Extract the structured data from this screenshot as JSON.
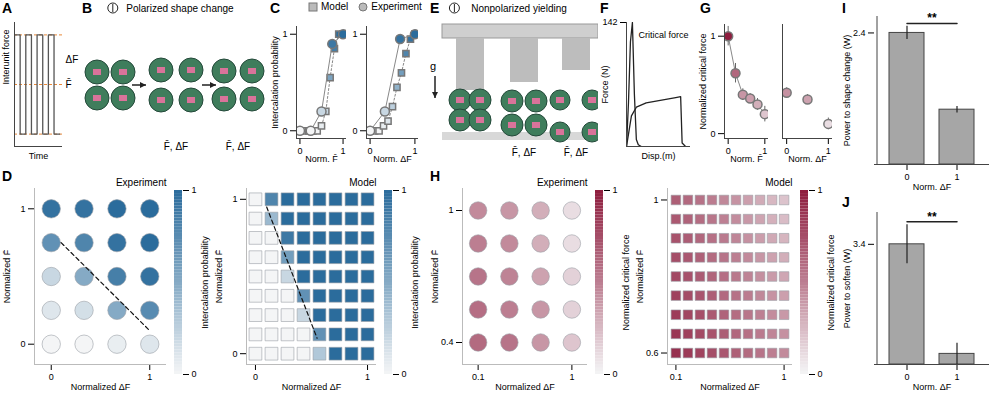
{
  "chart_data": [
    {
      "panel": "A",
      "type": "line",
      "xlabel": "Time",
      "ylabel": "Interunit force",
      "xlim": [
        0,
        8.5
      ],
      "ylim": [
        0,
        1
      ],
      "tick_labels": false,
      "series": [
        {
          "color": "#555555",
          "x": [
            0,
            0,
            1,
            1,
            2,
            2,
            3,
            3,
            4,
            4,
            5,
            5,
            6,
            6,
            7,
            7,
            8
          ],
          "values": [
            0.5,
            0.9,
            0.9,
            0.1,
            0.1,
            0.9,
            0.9,
            0.1,
            0.1,
            0.9,
            0.9,
            0.1,
            0.1,
            0.9,
            0.9,
            0.1,
            0.1
          ]
        }
      ],
      "reference_values": [
        0.1,
        0.5,
        0.9
      ],
      "annotations": [
        {
          "text": "ΔF",
          "y": 0.7
        },
        {
          "text": "F̄",
          "y": 0.5
        }
      ]
    },
    {
      "panel": "B",
      "type": "image",
      "title": "Polarized shape change",
      "annotations": [
        "F̄, ΔF",
        "F̄, ΔF"
      ]
    },
    {
      "panel": "C",
      "type": "scatter",
      "legend": "top",
      "xlabel": "Norm. F̄",
      "ylabel": "Intercalation probability",
      "xlim": [
        -0.08,
        1.08
      ],
      "ylim": [
        -0.08,
        1.08
      ],
      "xticks": [
        0,
        1
      ],
      "yticks": [
        0,
        1
      ],
      "color": "#2b6c9c",
      "series": [
        {
          "name": "Model",
          "marker": "square",
          "line_style": "dotted",
          "x": [
            0,
            0.1,
            0.2,
            0.3,
            0.4,
            0.5,
            0.6,
            0.7,
            0.8,
            0.9,
            1
          ],
          "values": [
            0,
            0,
            0,
            0,
            0,
            0.05,
            0.2,
            0.55,
            0.85,
            1,
            1
          ]
        },
        {
          "name": "Experiment",
          "marker": "circle",
          "line_style": "solid",
          "x": [
            0,
            0.25,
            0.5,
            0.75,
            1
          ],
          "values": [
            0,
            0,
            0.2,
            0.9,
            1
          ]
        }
      ]
    },
    {
      "type": "scatter",
      "xlabel": "Norm. ΔF",
      "xlim": [
        -0.08,
        1.08
      ],
      "ylim": [
        -0.08,
        1.08
      ],
      "xticks": [
        0,
        1
      ],
      "yticks": [
        0,
        1
      ],
      "color": "#2b6c9c",
      "series": [
        {
          "marker": "square",
          "line_style": "dotted",
          "x": [
            0,
            0.1,
            0.2,
            0.3,
            0.4,
            0.5,
            0.6,
            0.7,
            0.8,
            0.9,
            1
          ],
          "values": [
            0,
            0,
            0,
            0.05,
            0.1,
            0.25,
            0.45,
            0.6,
            0.8,
            0.95,
            1
          ]
        },
        {
          "marker": "circle",
          "line_style": "solid",
          "x": [
            0,
            0.33,
            0.67,
            1
          ],
          "values": [
            0,
            0.2,
            0.95,
            1
          ]
        }
      ]
    },
    {
      "panel": "D",
      "type": "dotgrid",
      "title": "Experiment",
      "xlabel": "Normalized ΔF",
      "ylabel": "Normalized F̄",
      "marker": "circle",
      "color": "#2b6c9c",
      "xlim": [
        -0.17,
        1.17
      ],
      "ylim": [
        -0.15,
        1.15
      ],
      "xticks": [
        0,
        1
      ],
      "yticks": [
        0,
        1
      ],
      "x": [
        0,
        0.333,
        0.667,
        1
      ],
      "y": [
        0,
        0.25,
        0.5,
        0.75,
        1
      ],
      "values": [
        [
          0,
          0,
          0.05,
          0.1
        ],
        [
          0.1,
          0.15,
          0.5,
          0.75
        ],
        [
          0.2,
          0.5,
          0.85,
          0.95
        ],
        [
          0.7,
          0.8,
          0.95,
          1
        ],
        [
          0.95,
          0.95,
          1,
          1
        ]
      ],
      "boundary": [
        [
          0.1,
          0.75
        ],
        [
          1,
          0.1
        ]
      ],
      "colorbar": {
        "label": "Intercalation probability",
        "range": [
          0,
          1
        ],
        "ticks": [
          0,
          1
        ]
      }
    },
    {
      "type": "dotgrid",
      "title": "Model",
      "xlabel": "Normalized ΔF",
      "ylabel": "Normalized F̄",
      "marker": "square",
      "color": "#2b6c9c",
      "xlim": [
        -0.08,
        1.08
      ],
      "ylim": [
        -0.07,
        1.07
      ],
      "xticks": [
        0,
        1
      ],
      "yticks": [
        0,
        1
      ],
      "x": [
        0,
        0.143,
        0.286,
        0.429,
        0.571,
        0.714,
        0.857,
        1
      ],
      "y": [
        0,
        0.125,
        0.25,
        0.375,
        0.5,
        0.625,
        0.75,
        0.875,
        1
      ],
      "values": [
        [
          0,
          0,
          0,
          0,
          0.3,
          1,
          1,
          1
        ],
        [
          0,
          0,
          0,
          0,
          0.7,
          1,
          1,
          1
        ],
        [
          0,
          0,
          0,
          0.2,
          1,
          1,
          1,
          1
        ],
        [
          0,
          0,
          0,
          0.7,
          1,
          1,
          1,
          1
        ],
        [
          0,
          0,
          0.2,
          1,
          1,
          1,
          1,
          1
        ],
        [
          0,
          0,
          0.6,
          1,
          1,
          1,
          1,
          1
        ],
        [
          0,
          0,
          0.9,
          1,
          1,
          1,
          1,
          1
        ],
        [
          0,
          0.4,
          1,
          1,
          1,
          1,
          1,
          1
        ],
        [
          0,
          0.8,
          1,
          1,
          1,
          1,
          1,
          1
        ]
      ],
      "boundary": [
        [
          0.1,
          0.95
        ],
        [
          0.55,
          0.1
        ]
      ],
      "colorbar": {
        "label": "Intercalation probability",
        "range": [
          0,
          1
        ],
        "ticks": [
          0,
          1
        ]
      }
    },
    {
      "panel": "E",
      "type": "image",
      "title": "Nonpolarized yielding",
      "gravity_label": "g",
      "annotations": [
        "F̄, ΔF",
        "F̄, ΔF"
      ]
    },
    {
      "panel": "F",
      "type": "line",
      "xlabel": "Disp.(m)",
      "ylabel": "Force (N)",
      "xlim": [
        0,
        0.13
      ],
      "ylim": [
        0,
        142
      ],
      "yticks": [
        142
      ],
      "tick_labels": "y",
      "series": [
        {
          "color": "#222222",
          "x": [
            0,
            0.004,
            0.008,
            0.012,
            0.016,
            0.02,
            0.024,
            0.03
          ],
          "values": [
            0,
            50,
            120,
            142,
            60,
            8,
            2,
            0
          ]
        },
        {
          "color": "#222222",
          "x": [
            0,
            0.01,
            0.02,
            0.04,
            0.06,
            0.08,
            0.1,
            0.11,
            0.113,
            0.12
          ],
          "values": [
            0,
            35,
            45,
            50,
            52,
            54,
            56,
            57,
            4,
            0
          ]
        }
      ],
      "annotations": [
        {
          "text": "Critical force",
          "x": 0.075,
          "y": 128
        }
      ]
    },
    {
      "panel": "G",
      "type": "scatter",
      "xlabel": "Norm. F̄",
      "ylabel": "Normalized critical force",
      "xlim": [
        -0.1,
        1.1
      ],
      "ylim": [
        -0.05,
        1.12
      ],
      "xticks": [
        0,
        1
      ],
      "yticks": [
        0,
        1
      ],
      "color": "#8e1d3e",
      "series": [
        {
          "marker": "circle",
          "line_style": "solid",
          "x": [
            0,
            0.2,
            0.4,
            0.6,
            0.8,
            1
          ],
          "values": [
            1,
            0.62,
            0.4,
            0.36,
            0.3,
            0.2
          ],
          "errors": [
            0.1,
            0.1,
            0.06,
            0.05,
            0.06,
            0.08
          ]
        }
      ]
    },
    {
      "type": "scatter",
      "xlabel": "Norm. ΔF",
      "xlim": [
        -0.1,
        1.1
      ],
      "ylim": [
        -0.05,
        1.12
      ],
      "xticks": [
        0,
        1
      ],
      "tick_labels": "x",
      "color": "#8e1d3e",
      "series": [
        {
          "marker": "circle",
          "line_style": "none",
          "x": [
            0,
            0.5,
            1
          ],
          "values": [
            0.42,
            0.35,
            0.1
          ],
          "errors": [
            0.05,
            0.05,
            0.06
          ]
        }
      ]
    },
    {
      "panel": "H",
      "type": "dotgrid",
      "title": "Experiment",
      "xlabel": "Normalized ΔF",
      "ylabel": "Normalized F̄",
      "marker": "circle",
      "color": "#8e1d3e",
      "xlim": [
        -0.05,
        1.15
      ],
      "ylim": [
        0.3,
        1.1
      ],
      "xticks": [
        0.1,
        1
      ],
      "yticks": [
        0.4,
        1
      ],
      "x": [
        0.1,
        0.4,
        0.7,
        1
      ],
      "y": [
        0.4,
        0.55,
        0.7,
        0.85,
        1
      ],
      "values": [
        [
          0.6,
          0.55,
          0.4,
          0.2
        ],
        [
          0.58,
          0.5,
          0.4,
          0.15
        ],
        [
          0.55,
          0.48,
          0.35,
          0.15
        ],
        [
          0.5,
          0.45,
          0.3,
          0.1
        ],
        [
          0.45,
          0.4,
          0.3,
          0.1
        ]
      ],
      "colorbar": {
        "label": "Normalized critical force",
        "range": [
          0,
          1
        ],
        "ticks": [
          0,
          1
        ]
      }
    },
    {
      "type": "dotgrid",
      "title": "Model",
      "xlabel": "Normalized ΔF",
      "ylabel": "Normalized F̄",
      "marker": "square",
      "color": "#8e1d3e",
      "xlim": [
        0.03,
        1.07
      ],
      "ylim": [
        0.57,
        1.03
      ],
      "xticks": [
        0.1,
        1
      ],
      "yticks": [
        0.6,
        1
      ],
      "x": [
        0.1,
        0.2,
        0.3,
        0.4,
        0.5,
        0.6,
        0.7,
        0.8,
        0.9,
        1
      ],
      "y": [
        0.6,
        0.65,
        0.7,
        0.75,
        0.8,
        0.85,
        0.9,
        0.95,
        1
      ],
      "values": [
        [
          0.9,
          0.85,
          0.8,
          0.75,
          0.7,
          0.65,
          0.6,
          0.55,
          0.5,
          0.45
        ],
        [
          0.87,
          0.82,
          0.77,
          0.72,
          0.67,
          0.62,
          0.57,
          0.52,
          0.47,
          0.42
        ],
        [
          0.84,
          0.79,
          0.74,
          0.69,
          0.64,
          0.59,
          0.54,
          0.49,
          0.44,
          0.39
        ],
        [
          0.81,
          0.76,
          0.71,
          0.66,
          0.61,
          0.56,
          0.51,
          0.46,
          0.41,
          0.36
        ],
        [
          0.78,
          0.73,
          0.68,
          0.63,
          0.58,
          0.53,
          0.48,
          0.43,
          0.38,
          0.33
        ],
        [
          0.75,
          0.7,
          0.65,
          0.6,
          0.55,
          0.5,
          0.45,
          0.4,
          0.35,
          0.3
        ],
        [
          0.72,
          0.67,
          0.62,
          0.57,
          0.52,
          0.47,
          0.42,
          0.37,
          0.32,
          0.27
        ],
        [
          0.69,
          0.64,
          0.59,
          0.54,
          0.49,
          0.44,
          0.39,
          0.34,
          0.29,
          0.24
        ],
        [
          0.66,
          0.61,
          0.56,
          0.51,
          0.46,
          0.41,
          0.36,
          0.31,
          0.26,
          0.21
        ]
      ],
      "colorbar": {
        "label": "Normalized critical force",
        "range": [
          0,
          1
        ],
        "ticks": [
          0,
          1
        ]
      }
    },
    {
      "panel": "I",
      "type": "bar",
      "categories": [
        "0",
        "1"
      ],
      "values": [
        2.4,
        1.0
      ],
      "errors": [
        0.12,
        0.06
      ],
      "xlabel": "Norm. ΔF",
      "ylabel": "Power to shape change (W)",
      "ylim": [
        0,
        2.7
      ],
      "yticks": [
        2.4
      ],
      "color": "#a6a6a6",
      "significance": "**"
    },
    {
      "panel": "J",
      "type": "bar",
      "categories": [
        "0",
        "1"
      ],
      "values": [
        3.4,
        0.3
      ],
      "errors": [
        0.55,
        0.3
      ],
      "xlabel": "Norm. ΔF",
      "ylabel": "Power to soften (W)",
      "ylim": [
        0,
        4.3
      ],
      "yticks": [
        3.4
      ],
      "color": "#a6a6a6",
      "significance": "**"
    }
  ]
}
